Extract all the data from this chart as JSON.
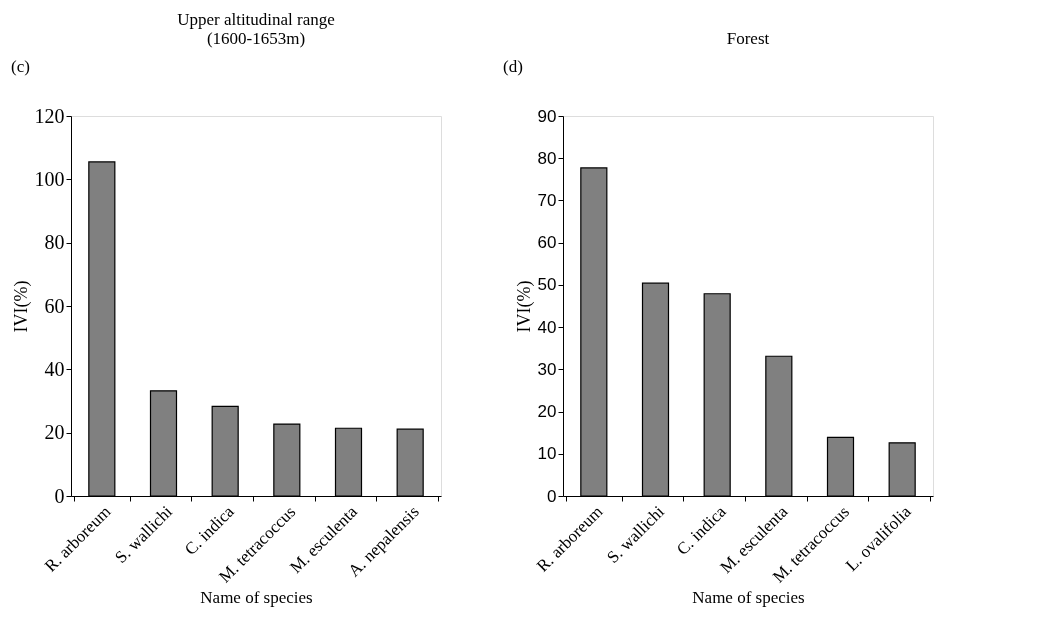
{
  "chart_data": [
    {
      "type": "bar",
      "title": [
        "Upper altitudinal range",
        "(1600-1653m)"
      ],
      "xlabel": "Name of species",
      "ylabel": "IVI(%)",
      "annotations": [
        "(c)"
      ],
      "categories": [
        "R. arboreum",
        "S. wallichi",
        "C. indica",
        "M. tetracoccus",
        "M. esculenta",
        "A. nepalensis"
      ],
      "values": [
        105.5,
        33.2,
        28.3,
        22.7,
        21.4,
        21.1
      ],
      "color": "#808080",
      "ylim": [
        0,
        120
      ],
      "yticks": [
        0,
        20,
        40,
        60,
        80,
        100,
        120
      ],
      "grid": false
    },
    {
      "type": "bar",
      "title": "Forest",
      "xlabel": "Name of species",
      "ylabel": "IVI(%)",
      "annotations": [
        "(d)"
      ],
      "categories": [
        "R. arboreum",
        "S. wallichi",
        "C. indica",
        "M. esculenta",
        "M. tetracoccus",
        "L. ovalifolia"
      ],
      "values": [
        77.7,
        50.4,
        47.9,
        33.1,
        13.9,
        12.6
      ],
      "color": "#808080",
      "ylim": [
        0,
        90
      ],
      "yticks": [
        0,
        10,
        20,
        30,
        40,
        50,
        60,
        70,
        80,
        90
      ],
      "grid": false
    }
  ]
}
